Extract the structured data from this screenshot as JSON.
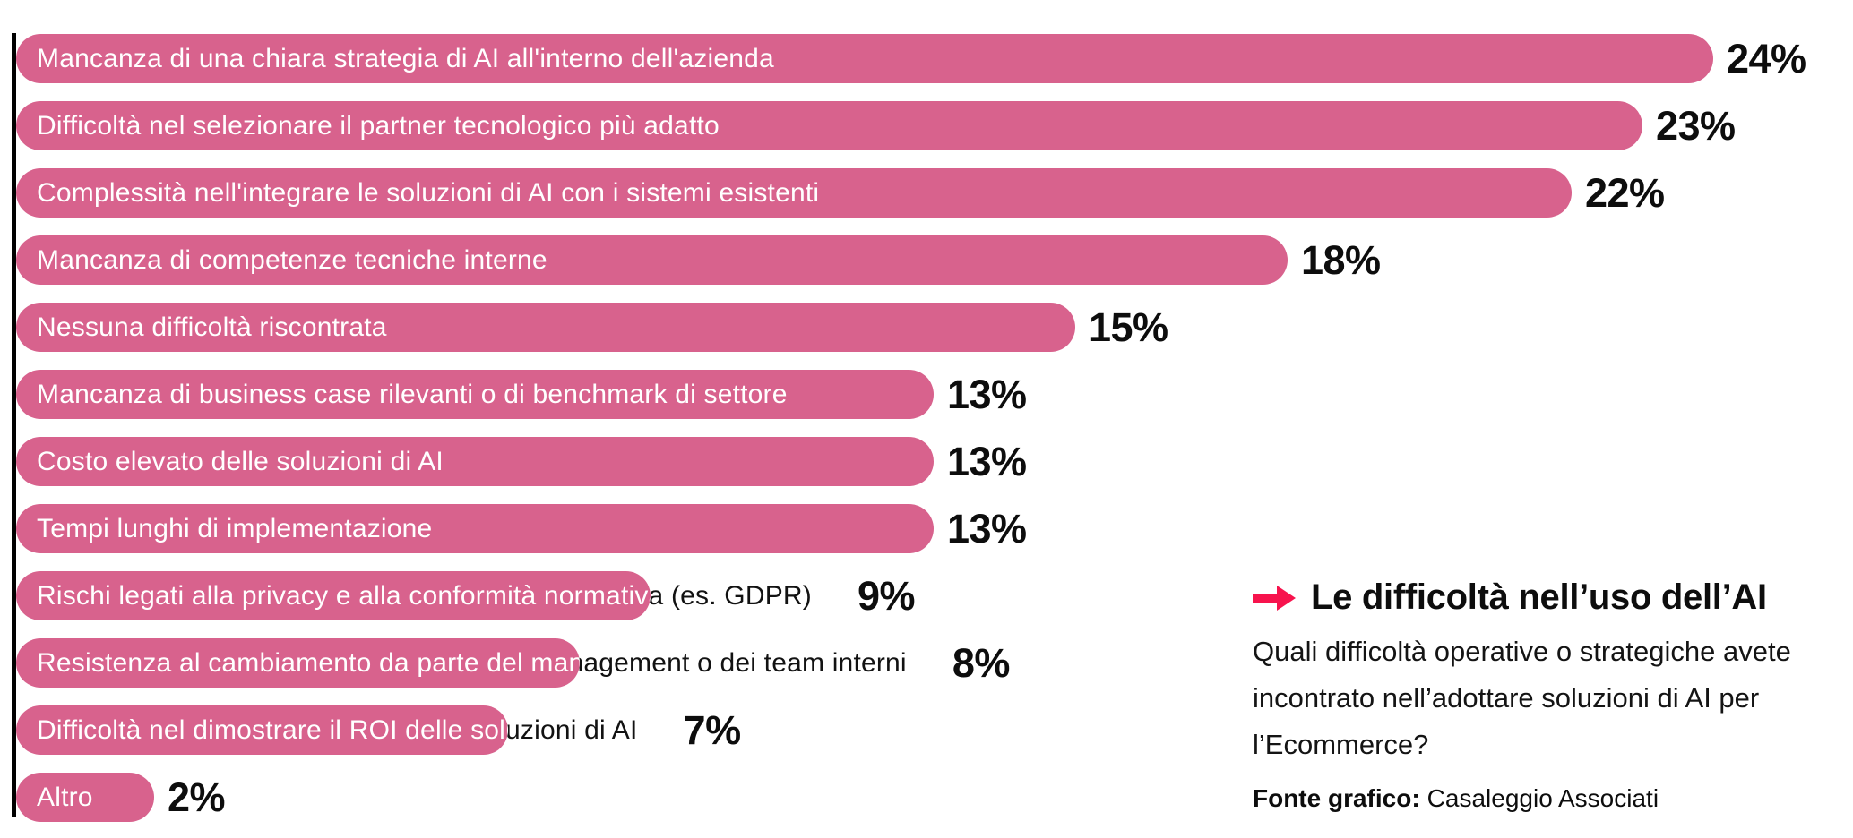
{
  "chart_data": {
    "type": "bar",
    "orientation": "horizontal",
    "unit": "%",
    "xlim": [
      0,
      25
    ],
    "grid": false,
    "legend": "none",
    "bar_color": "#d8628d",
    "bar_text_color": "#ffffff",
    "overflow_text_color": "#121212",
    "value_text_color": "#0d0d0d",
    "axis_color": "#000000",
    "categories": [
      "Mancanza di una chiara strategia di AI all'interno dell'azienda",
      "Difficoltà nel selezionare il partner tecnologico più adatto",
      "Complessità nell'integrare le soluzioni di AI con i sistemi esistenti",
      "Mancanza di competenze tecniche interne",
      "Nessuna difficoltà riscontrata",
      "Mancanza di business case rilevanti o di benchmark di settore",
      "Costo elevato delle soluzioni di AI",
      "Tempi lunghi di implementazione",
      "Rischi legati alla privacy e alla conformità normativa (es. GDPR)",
      "Resistenza al cambiamento da parte del management o dei team interni",
      "Difficoltà nel dimostrare il ROI delle soluzioni di AI",
      "Altro"
    ],
    "values": [
      24,
      23,
      22,
      18,
      15,
      13,
      13,
      13,
      9,
      8,
      7,
      2
    ],
    "bars": [
      {
        "label": "Mancanza di una chiara strategia di AI all'interno dell'azienda",
        "value": 24,
        "pct_label": "24%"
      },
      {
        "label": "Difficoltà nel selezionare il partner tecnologico più adatto",
        "value": 23,
        "pct_label": "23%"
      },
      {
        "label": "Complessità nell'integrare le soluzioni di AI con i sistemi esistenti",
        "value": 22,
        "pct_label": "22%"
      },
      {
        "label": "Mancanza di competenze tecniche interne",
        "value": 18,
        "pct_label": "18%"
      },
      {
        "label": "Nessuna difficoltà riscontrata",
        "value": 15,
        "pct_label": "15%"
      },
      {
        "label": "Mancanza di business case rilevanti o di benchmark di settore",
        "value": 13,
        "pct_label": "13%"
      },
      {
        "label": "Costo elevato delle soluzioni di AI",
        "value": 13,
        "pct_label": "13%"
      },
      {
        "label": "Tempi lunghi di implementazione",
        "value": 13,
        "pct_label": "13%"
      },
      {
        "label": "Rischi legati alla privacy e alla conformità normativa (es. GDPR)",
        "value": 9,
        "pct_label": "9%"
      },
      {
        "label": "Resistenza al cambiamento da parte del management o dei team interni",
        "value": 8,
        "pct_label": "8%"
      },
      {
        "label": "Difficoltà nel dimostrare il ROI delle soluzioni di AI",
        "value": 7,
        "pct_label": "7%"
      },
      {
        "label": "Altro",
        "value": 2,
        "pct_label": "2%"
      }
    ]
  },
  "info_panel": {
    "arrow_icon": "arrow-right-icon",
    "accent_color": "#f7134d",
    "title": "Le difficoltà nell’uso dell’AI",
    "question": "Quali difficoltà operative o strategiche avete incontrato nell’adottare soluzioni di AI per l’Ecommerce?",
    "source_label": "Fonte grafico:",
    "source_value": "Casaleggio Associati"
  }
}
